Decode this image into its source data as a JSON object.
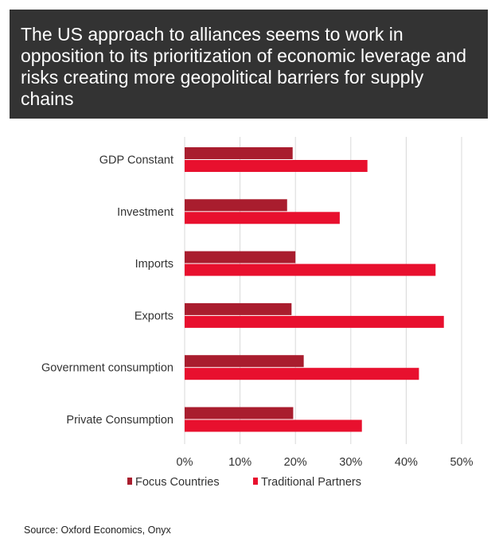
{
  "chart_data": {
    "type": "bar",
    "orientation": "horizontal",
    "title": "The US approach to alliances seems to work in opposition to its prioritization of economic leverage and risks creating more geopolitical barriers for supply chains",
    "categories": [
      "GDP Constant",
      "Investment",
      "Imports",
      "Exports",
      "Government consumption",
      "Private Consumption"
    ],
    "series": [
      {
        "name": "Focus Countries",
        "color": "#a91d2e",
        "values": [
          19.5,
          18.5,
          20.0,
          19.3,
          21.5,
          19.6
        ]
      },
      {
        "name": "Traditional Partners",
        "color": "#e8102e",
        "values": [
          33.0,
          28.0,
          45.3,
          46.8,
          42.3,
          32.0
        ]
      }
    ],
    "x_ticks": [
      "0%",
      "10%",
      "20%",
      "30%",
      "40%",
      "50%"
    ],
    "xlim": [
      0,
      50
    ],
    "grid": "vertical",
    "legend": "bottom"
  },
  "source": "Source: Oxford Economics, Onyx"
}
